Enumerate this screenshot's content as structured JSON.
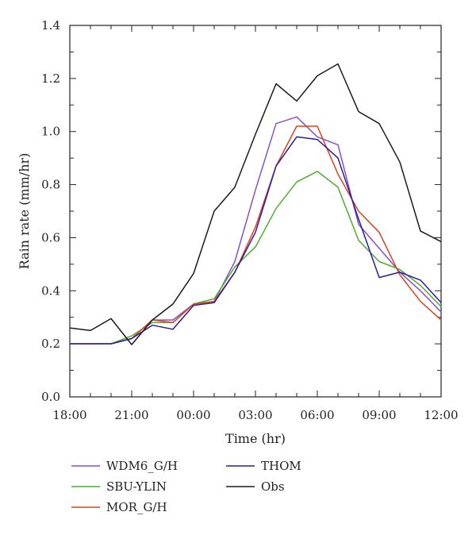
{
  "chart_data": {
    "type": "line",
    "title": "",
    "xlabel": "Time (hr)",
    "ylabel": "Rain rate (mm/hr)",
    "ylim": [
      0.0,
      1.4
    ],
    "xlim": [
      "18:00",
      "12:00"
    ],
    "x_tick_labels": [
      "18:00",
      "21:00",
      "00:00",
      "03:00",
      "06:00",
      "09:00",
      "12:00"
    ],
    "y_tick_labels": [
      "0.0",
      "0.2",
      "0.4",
      "0.6",
      "0.8",
      "1.0",
      "1.2",
      "1.4"
    ],
    "x": [
      "18:00",
      "19:00",
      "20:00",
      "21:00",
      "22:00",
      "23:00",
      "00:00",
      "01:00",
      "02:00",
      "03:00",
      "04:00",
      "05:00",
      "06:00",
      "07:00",
      "08:00",
      "09:00",
      "10:00",
      "11:00",
      "12:00"
    ],
    "grid": false,
    "legend_placement": "bottom",
    "series": [
      {
        "name": "WDM6_G/H",
        "color": "#8a4fc7",
        "values": [
          0.2,
          0.2,
          0.2,
          0.22,
          0.29,
          0.29,
          0.35,
          0.36,
          0.51,
          0.78,
          1.03,
          1.055,
          0.98,
          0.95,
          0.65,
          0.56,
          0.47,
          0.4,
          0.32
        ]
      },
      {
        "name": "SBU-YLIN",
        "color": "#4fae2f",
        "values": [
          0.2,
          0.2,
          0.2,
          0.23,
          0.28,
          0.28,
          0.35,
          0.37,
          0.49,
          0.565,
          0.71,
          0.81,
          0.85,
          0.79,
          0.59,
          0.51,
          0.48,
          0.42,
          0.34
        ]
      },
      {
        "name": "MOR_G/H",
        "color": "#e0401a",
        "values": [
          0.2,
          0.2,
          0.2,
          0.22,
          0.29,
          0.28,
          0.35,
          0.36,
          0.47,
          0.64,
          0.87,
          1.02,
          1.02,
          0.84,
          0.7,
          0.62,
          0.46,
          0.36,
          0.29
        ]
      },
      {
        "name": "THOM",
        "color": "#2a1d9e",
        "values": [
          0.2,
          0.2,
          0.2,
          0.22,
          0.27,
          0.255,
          0.345,
          0.355,
          0.47,
          0.62,
          0.87,
          0.98,
          0.97,
          0.9,
          0.67,
          0.45,
          0.47,
          0.44,
          0.355
        ]
      },
      {
        "name": "Obs",
        "color": "#1a1a1a",
        "values": [
          0.26,
          0.25,
          0.295,
          0.197,
          0.29,
          0.35,
          0.465,
          0.7,
          0.79,
          0.99,
          1.18,
          1.115,
          1.21,
          1.255,
          1.075,
          1.03,
          0.885,
          0.625,
          0.585
        ]
      }
    ]
  }
}
